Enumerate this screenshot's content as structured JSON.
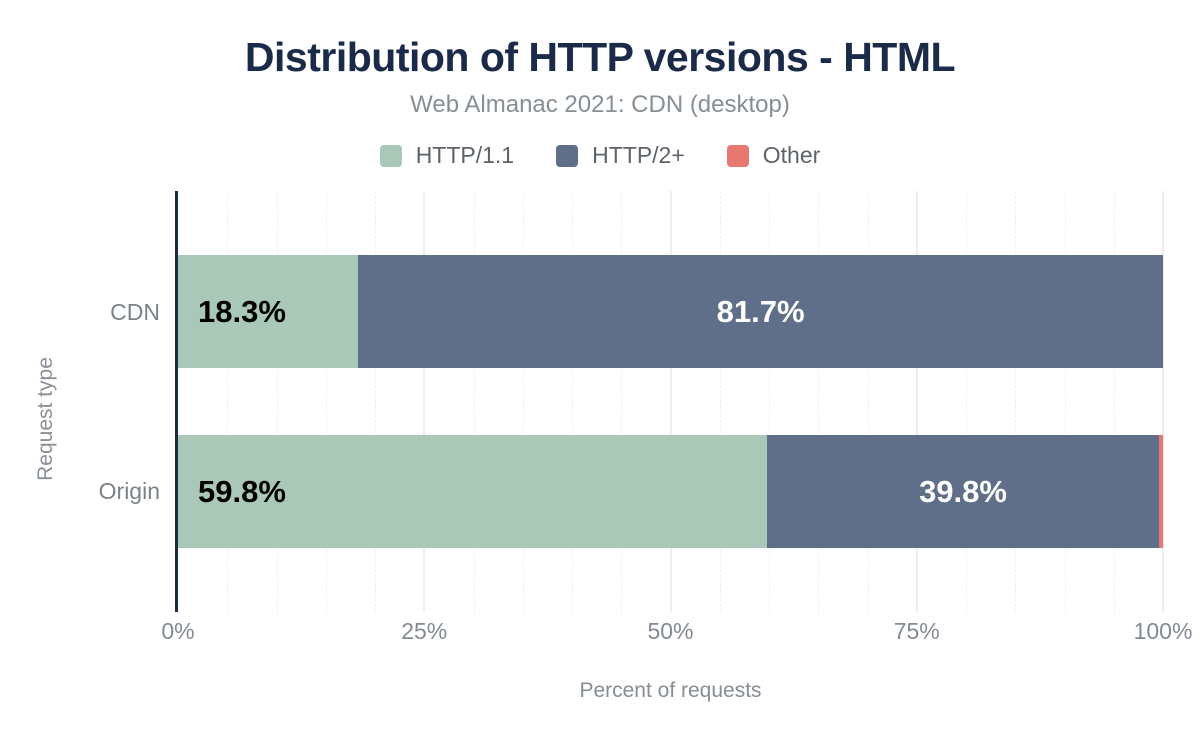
{
  "header": {
    "title": "Distribution of HTTP versions - HTML",
    "subtitle": "Web Almanac 2021: CDN (desktop)"
  },
  "colors": {
    "title_text": "#1b2a48",
    "subtitle_text": "#878e96",
    "axis_line": "#1d2b45",
    "tick_text": "#848a93",
    "series_http11": "#a9c8b8",
    "series_http2plus": "#5f6f8a",
    "series_other": "#e8776f"
  },
  "chart_data": {
    "type": "bar",
    "orientation": "horizontal",
    "stacked": true,
    "grid": "vertical, minor every 5%, major every 25%",
    "legend_position": "top",
    "title": "Distribution of HTTP versions - HTML",
    "subtitle": "Web Almanac 2021: CDN (desktop)",
    "categories": [
      "CDN",
      "Origin"
    ],
    "series": [
      {
        "name": "HTTP/1.1",
        "color": "#a9c8b8",
        "values": [
          18.3,
          59.8
        ]
      },
      {
        "name": "HTTP/2+",
        "color": "#5f6f8a",
        "values": [
          81.7,
          39.8
        ]
      },
      {
        "name": "Other",
        "color": "#e8776f",
        "values": [
          0,
          0.4
        ]
      }
    ],
    "bar_labels": [
      [
        "18.3%",
        "81.7%",
        ""
      ],
      [
        "59.8%",
        "39.8%",
        ""
      ]
    ],
    "xlabel": "Percent of requests",
    "ylabel": "Request type",
    "xlim": [
      0,
      100
    ],
    "xticks": [
      {
        "label": "0%",
        "value": 0
      },
      {
        "label": "25%",
        "value": 25
      },
      {
        "label": "50%",
        "value": 50
      },
      {
        "label": "75%",
        "value": 75
      },
      {
        "label": "100%",
        "value": 100
      }
    ]
  }
}
